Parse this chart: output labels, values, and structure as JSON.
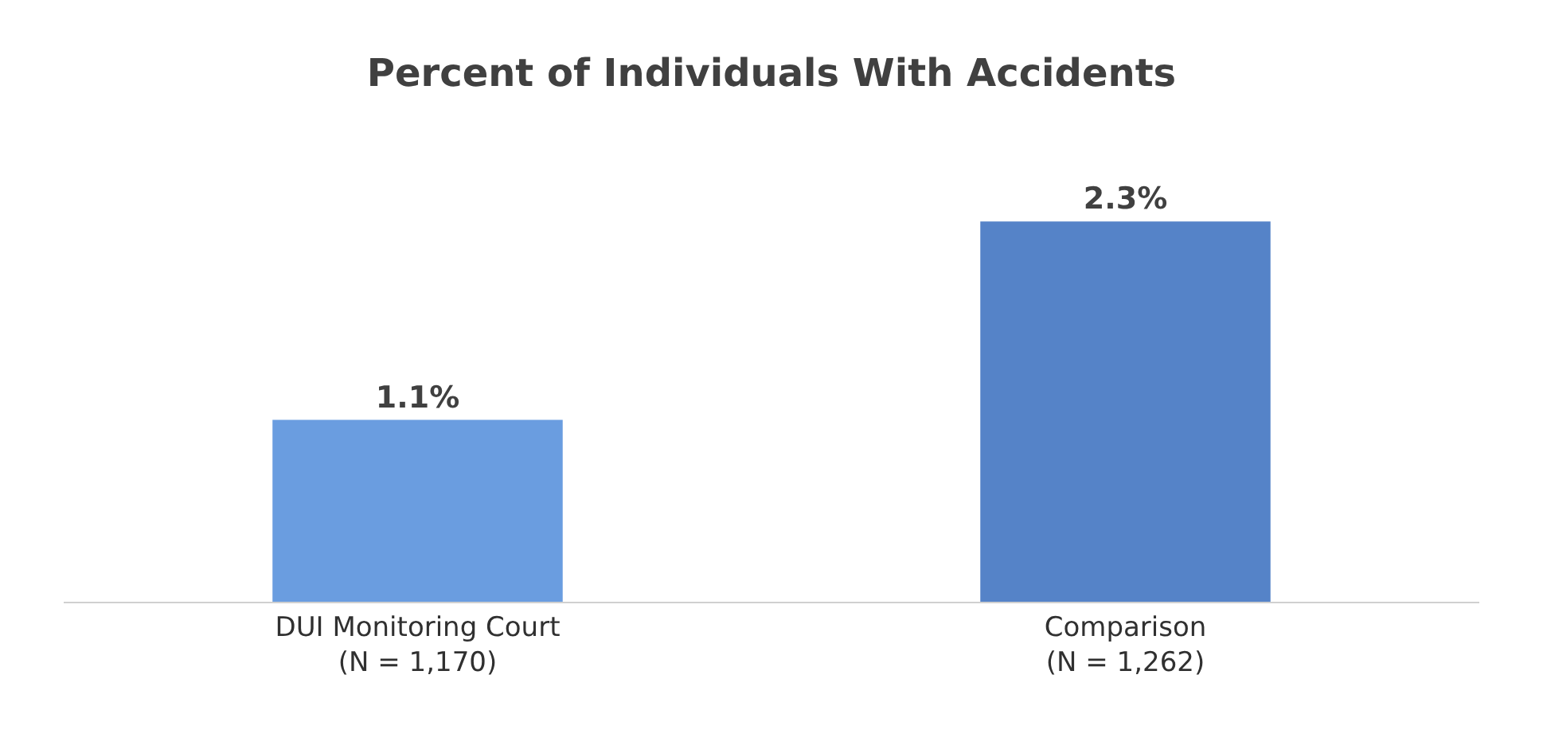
{
  "chart_data": {
    "type": "bar",
    "title": "Percent of Individuals With Accidents",
    "categories": [
      "DUI Monitoring Court\n(N = 1,170)",
      "Comparison\n(N = 1,262)"
    ],
    "values": [
      1.1,
      2.3
    ],
    "colors": [
      "#6a9de0",
      "#5583c8"
    ],
    "value_labels": [
      "1.1%",
      "2.3%"
    ]
  }
}
